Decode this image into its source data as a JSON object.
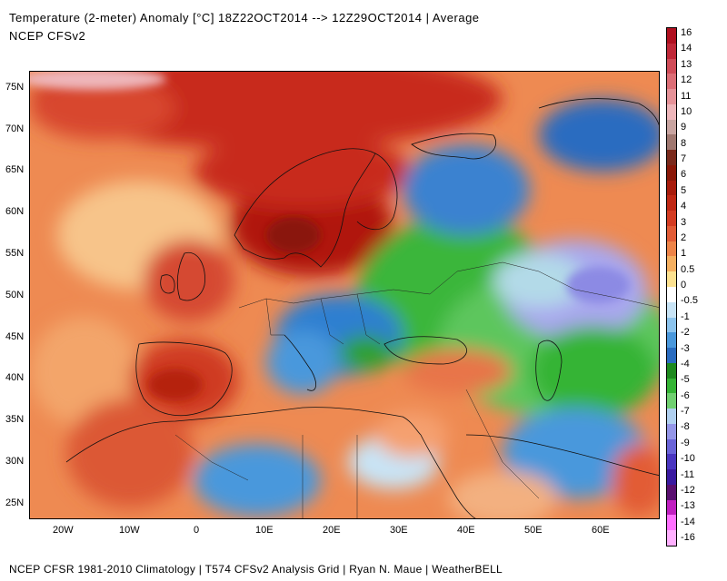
{
  "header": {
    "title": "Temperature (2-meter) Anomaly  [°C] 18Z22OCT2014 --> 12Z29OCT2014 | Average",
    "subtitle": "NCEP CFSv2"
  },
  "footer": {
    "text": "NCEP CFSR 1981-2010 Climatology | T574 CFSv2 Analysis Grid | Ryan N. Maue | WeatherBELL"
  },
  "map": {
    "lat_labels": [
      "75N",
      "70N",
      "65N",
      "60N",
      "55N",
      "50N",
      "45N",
      "40N",
      "35N",
      "30N",
      "25N"
    ],
    "lon_labels": [
      "20W",
      "10W",
      "0",
      "10E",
      "20E",
      "30E",
      "40E",
      "50E",
      "60E"
    ],
    "regions": [
      {
        "name": "arctic-north-atlantic-warm",
        "color": "#c8291e"
      },
      {
        "name": "scandinavia-warm",
        "color": "#b0190f"
      },
      {
        "name": "iberia-warm",
        "color": "#d8462d"
      },
      {
        "name": "central-europe-balkans-cold",
        "color": "#2f7fd0"
      },
      {
        "name": "eastern-europe-cold",
        "color": "#35b435"
      },
      {
        "name": "russia-central-asia-cold",
        "color": "#a9a7ee"
      },
      {
        "name": "north-africa-mixed",
        "color": "#f5a070"
      }
    ]
  },
  "colorbar": {
    "labels": [
      "16",
      "14",
      "13",
      "12",
      "11",
      "10",
      "9",
      "8",
      "7",
      "6",
      "5",
      "4",
      "3",
      "2",
      "1",
      "0.5",
      "0",
      "-0.5",
      "-1",
      "-2",
      "-3",
      "-4",
      "-5",
      "-6",
      "-7",
      "-8",
      "-9",
      "-10",
      "-11",
      "-12",
      "-13",
      "-14",
      "-16"
    ],
    "colors": [
      "#b01020",
      "#c02838",
      "#d04c58",
      "#dc6e76",
      "#e69298",
      "#eeb6ba",
      "#c8a4a0",
      "#a07870",
      "#7a2a1c",
      "#8a1808",
      "#a81c0c",
      "#c02814",
      "#d43c22",
      "#e25c36",
      "#ee8448",
      "#f6b060",
      "#fde290",
      "#ffffff",
      "#c8e4f6",
      "#8cc4ee",
      "#4a98dc",
      "#2a6cc0",
      "#1e8a1e",
      "#34b434",
      "#70d070",
      "#b0d0f0",
      "#9496e8",
      "#6a64d8",
      "#4a36c0",
      "#3a1aa0",
      "#5a1070",
      "#c020c0",
      "#ff70ff",
      "#ffb0ff"
    ]
  }
}
